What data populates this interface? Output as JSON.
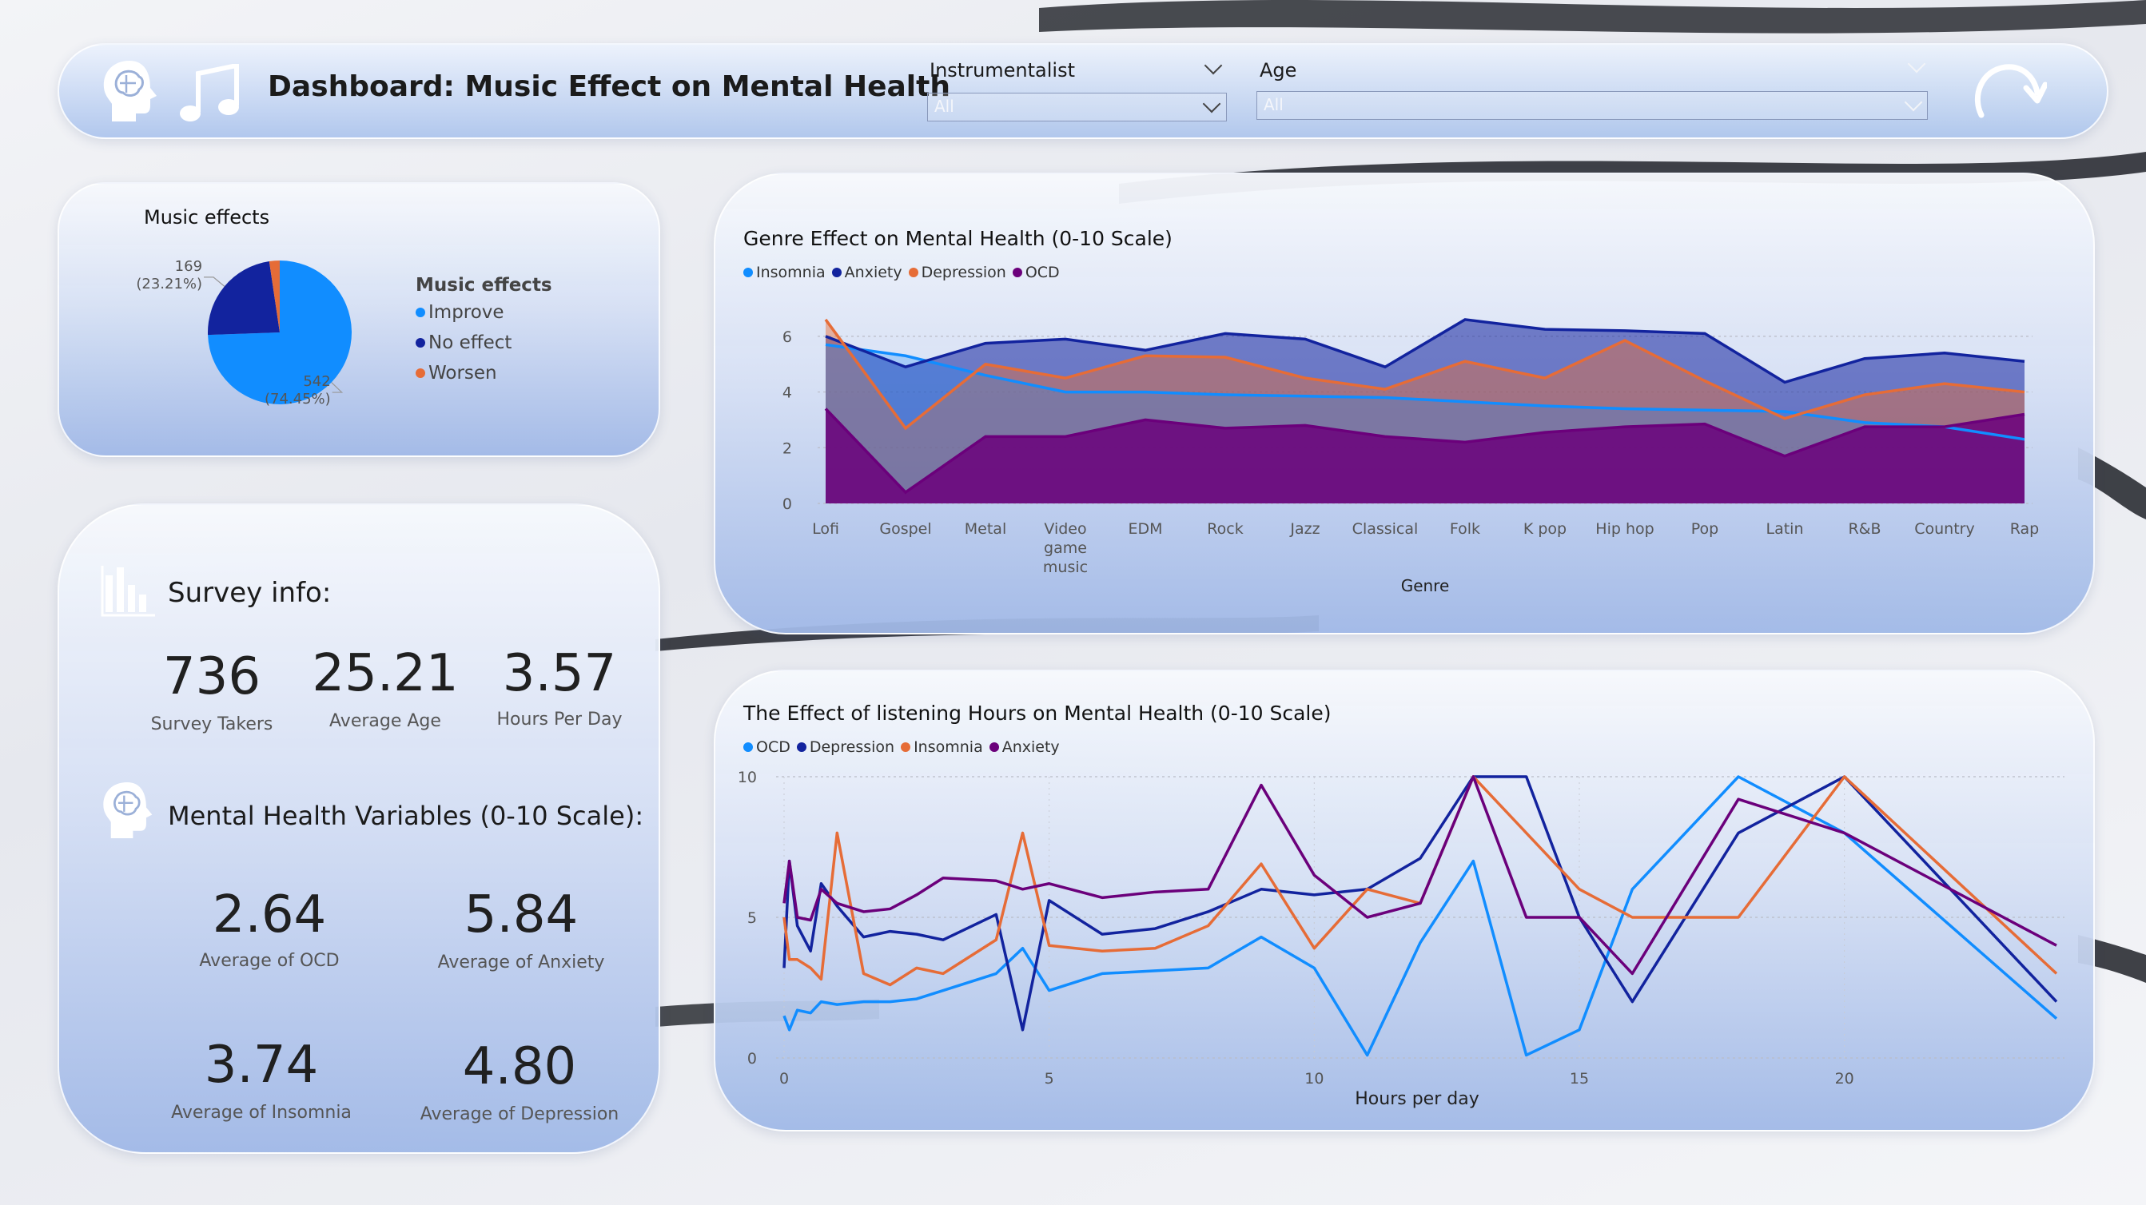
{
  "header": {
    "title": "Dashboard: Music Effect on Mental Health",
    "slicer1_label": "Instrumentalist",
    "slicer1_value": "All",
    "slicer2_label": "Age",
    "slicer2_value": "All"
  },
  "colors": {
    "light_blue": "#118DFF",
    "dark_blue": "#12239E",
    "orange": "#E66C37",
    "purple": "#6B007B"
  },
  "survey": {
    "heading": "Survey info:",
    "survey_takers": "736",
    "survey_takers_label": "Survey Takers",
    "average_age": "25.21",
    "average_age_label": "Average Age",
    "hours_per_day": "3.57",
    "hours_per_day_label": "Hours Per Day"
  },
  "mental_health": {
    "heading": "Mental Health Variables (0-10 Scale):",
    "ocd": "2.64",
    "ocd_label": "Average of OCD",
    "anxiety": "5.84",
    "anxiety_label": "Average of Anxiety",
    "insomnia": "3.74",
    "insomnia_label": "Average of Insomnia",
    "depression": "4.80",
    "depression_label": "Average of Depression"
  },
  "chart_data": [
    {
      "id": "pie",
      "type": "pie",
      "title": "Music effects",
      "legend_title": "Music effects",
      "legend_position": "right",
      "categories": [
        "Improve",
        "No effect",
        "Worsen"
      ],
      "values": [
        542,
        169,
        17
      ],
      "data_labels": [
        {
          "category": "Improve",
          "value": "542",
          "pct": "(74.45%)"
        },
        {
          "category": "No effect",
          "value": "169",
          "pct": "(23.21%)"
        }
      ]
    },
    {
      "id": "genre",
      "type": "area",
      "title": "Genre Effect on Mental Health (0-10 Scale)",
      "xlabel": "Genre",
      "ylabel": "",
      "ylim": [
        0,
        7
      ],
      "yticks": [
        0,
        2,
        4,
        6
      ],
      "grid": true,
      "legend_position": "top-left",
      "categories": [
        "Lofi",
        "Gospel",
        "Metal",
        "Video game music",
        "EDM",
        "Rock",
        "Jazz",
        "Classical",
        "Folk",
        "K pop",
        "Hip hop",
        "Pop",
        "Latin",
        "R&B",
        "Country",
        "Rap"
      ],
      "series": [
        {
          "name": "Insomnia",
          "values": [
            5.7,
            5.3,
            4.6,
            4.0,
            4.0,
            3.9,
            3.85,
            3.8,
            3.65,
            3.5,
            3.4,
            3.35,
            3.3,
            2.9,
            2.75,
            2.3
          ]
        },
        {
          "name": "Anxiety",
          "values": [
            6.0,
            4.9,
            5.75,
            5.9,
            5.5,
            6.1,
            5.9,
            4.9,
            6.6,
            6.25,
            6.2,
            6.1,
            4.35,
            5.2,
            5.4,
            5.1
          ]
        },
        {
          "name": "Depression",
          "values": [
            6.6,
            2.7,
            5.0,
            4.5,
            5.3,
            5.25,
            4.5,
            4.1,
            5.1,
            4.5,
            5.85,
            4.4,
            3.05,
            3.9,
            4.3,
            4.0
          ]
        },
        {
          "name": "OCD",
          "values": [
            3.4,
            0.4,
            2.4,
            2.4,
            3.0,
            2.7,
            2.8,
            2.4,
            2.2,
            2.55,
            2.75,
            2.85,
            1.7,
            2.75,
            2.75,
            3.2
          ]
        }
      ]
    },
    {
      "id": "hours",
      "type": "line",
      "title": "The Effect of listening Hours on Mental Health (0-10 Scale)",
      "xlabel": "Hours per day",
      "ylabel": "",
      "xlim": [
        0,
        24
      ],
      "ylim": [
        0,
        10
      ],
      "xticks": [
        0,
        5,
        10,
        15,
        20
      ],
      "yticks": [
        0,
        5,
        10
      ],
      "grid": true,
      "legend_position": "top-left",
      "x": [
        0,
        0.1,
        0.25,
        0.5,
        0.7,
        1,
        1.5,
        2,
        2.5,
        3,
        4,
        4.5,
        5,
        6,
        7,
        8,
        9,
        10,
        11,
        12,
        13,
        14,
        15,
        16,
        18,
        20,
        24
      ],
      "series": [
        {
          "name": "OCD",
          "values": [
            1.5,
            1.0,
            1.7,
            1.6,
            2.0,
            1.9,
            2.0,
            2.0,
            2.1,
            2.4,
            3.0,
            3.9,
            2.4,
            3.0,
            3.1,
            3.2,
            4.3,
            3.2,
            0.1,
            4.1,
            7.0,
            0.1,
            1.0,
            6.0,
            10.0,
            8.0,
            1.4
          ]
        },
        {
          "name": "Depression",
          "values": [
            3.2,
            7.0,
            4.7,
            3.8,
            6.2,
            5.4,
            4.3,
            4.5,
            4.4,
            4.2,
            5.1,
            1.0,
            5.6,
            4.4,
            4.6,
            5.2,
            6.0,
            5.8,
            6.0,
            7.1,
            10.0,
            10.0,
            5.0,
            2.0,
            8.0,
            10.0,
            2.0
          ]
        },
        {
          "name": "Insomnia",
          "values": [
            5.0,
            3.5,
            3.5,
            3.2,
            2.8,
            8.0,
            3.0,
            2.6,
            3.2,
            3.0,
            4.2,
            8.0,
            4.0,
            3.8,
            3.9,
            4.7,
            6.9,
            3.9,
            6.0,
            5.5,
            10.0,
            8.0,
            6.0,
            5.0,
            5.0,
            10.0,
            3.0
          ]
        },
        {
          "name": "Anxiety",
          "values": [
            5.5,
            7.0,
            5.0,
            4.9,
            6.0,
            5.5,
            5.2,
            5.3,
            5.8,
            6.4,
            6.3,
            6.0,
            6.2,
            5.7,
            5.9,
            6.0,
            9.7,
            6.5,
            5.0,
            5.5,
            10.0,
            5.0,
            5.0,
            3.0,
            9.2,
            8.0,
            4.0
          ]
        }
      ]
    }
  ]
}
